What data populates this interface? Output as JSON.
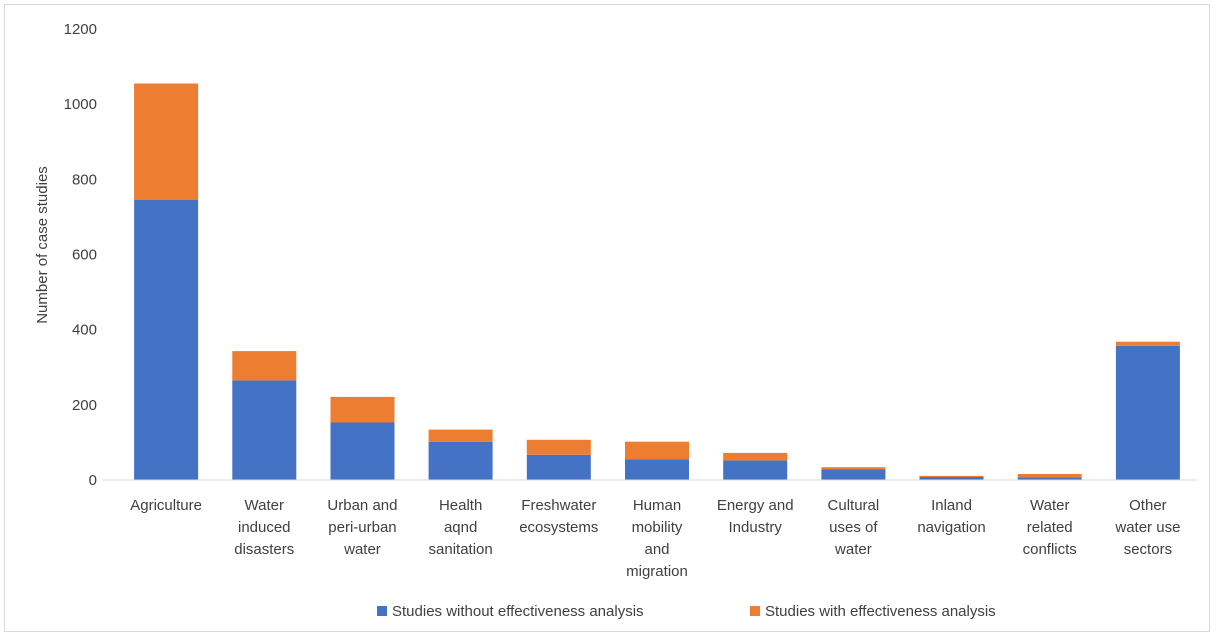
{
  "chart_data": {
    "type": "bar",
    "stacked": true,
    "title": "",
    "xlabel": "",
    "ylabel": "Number of case studies",
    "ylim": [
      0,
      1200
    ],
    "yticks": [
      0,
      200,
      400,
      600,
      800,
      1000,
      1200
    ],
    "grid": false,
    "legend_position": "bottom",
    "categories": [
      [
        "Agriculture"
      ],
      [
        "Water",
        "induced",
        "disasters"
      ],
      [
        "Urban and",
        "peri-urban",
        "water"
      ],
      [
        "Health",
        "aqnd",
        "sanitation"
      ],
      [
        "Freshwater",
        "ecosystems"
      ],
      [
        "Human",
        "mobility",
        "and",
        "migration"
      ],
      [
        "Energy and",
        "Industry"
      ],
      [
        "Cultural",
        "uses of",
        "water"
      ],
      [
        "Inland",
        "navigation"
      ],
      [
        "Water",
        "related",
        "conflicts"
      ],
      [
        "Other",
        "water use",
        "sectors"
      ]
    ],
    "series": [
      {
        "name": "Studies without effectiveness analysis",
        "color": "#4472c4",
        "values": [
          745,
          265,
          153,
          102,
          67,
          55,
          52,
          28,
          8,
          7,
          357
        ]
      },
      {
        "name": "Studies with effectiveness analysis",
        "color": "#ed7d31",
        "values": [
          310,
          78,
          68,
          32,
          40,
          47,
          20,
          6,
          3,
          9,
          11
        ]
      }
    ]
  }
}
